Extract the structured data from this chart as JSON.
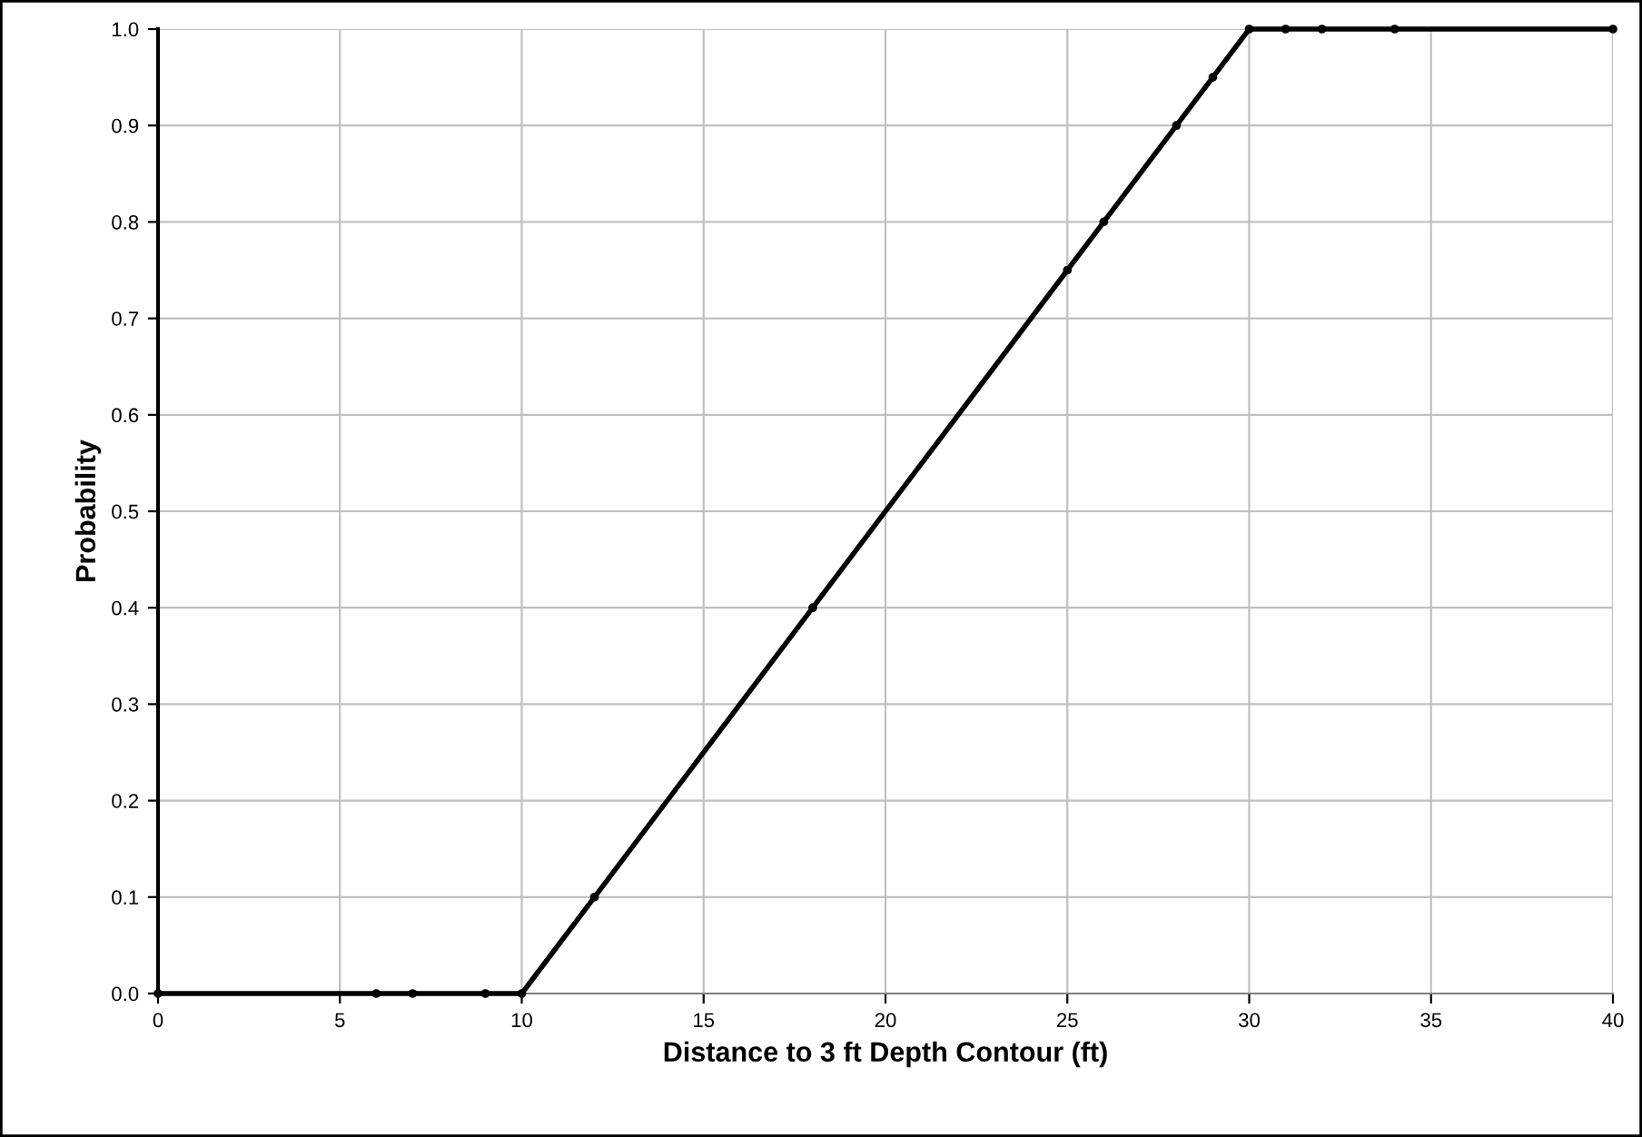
{
  "chart_data": {
    "type": "line",
    "xlabel": "Distance to 3 ft Depth Contour (ft)",
    "ylabel": "Probability",
    "series": [
      {
        "color": "#000000",
        "x": [
          0,
          6,
          7,
          9,
          10,
          12,
          18,
          25,
          26,
          28,
          29,
          30,
          31,
          32,
          34,
          40
        ],
        "values": [
          0,
          0,
          0,
          0,
          0,
          0.1,
          0.4,
          0.75,
          0.8,
          0.9,
          0.95,
          1,
          1,
          1,
          1,
          1
        ]
      }
    ],
    "xlim": [
      0,
      40
    ],
    "xticks": [
      0,
      5,
      10,
      15,
      20,
      25,
      30,
      35,
      40
    ],
    "ylim": [
      0,
      1
    ],
    "yticks": [
      {
        "value": 0,
        "label": "0.0"
      },
      {
        "value": 0.1,
        "label": "0.1"
      },
      {
        "value": 0.2,
        "label": "0.2"
      },
      {
        "value": 0.3,
        "label": "0.3"
      },
      {
        "value": 0.4,
        "label": "0.4"
      },
      {
        "value": 0.5,
        "label": "0.5"
      },
      {
        "value": 0.6,
        "label": "0.6"
      },
      {
        "value": 0.7,
        "label": "0.7"
      },
      {
        "value": 0.8,
        "label": "0.8"
      },
      {
        "value": 0.9,
        "label": "0.9"
      },
      {
        "value": 1,
        "label": "1.0"
      }
    ],
    "grid": true,
    "marker": "circle",
    "line_style": "solid"
  }
}
